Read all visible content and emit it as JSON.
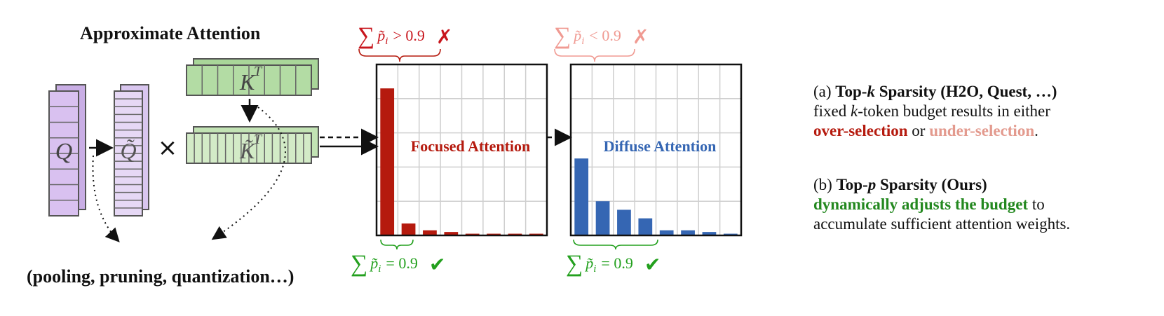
{
  "title": "Approximate Attention",
  "bottom_label": "(pooling, pruning, quantization…)",
  "matrices": {
    "q": "Q",
    "q_tilde": "Q̃",
    "times": "×",
    "k_t": "K",
    "k_t_sup": "T",
    "k_tilde": "K̃",
    "k_tilde_sup": "T"
  },
  "charts": [
    {
      "label": "Focused Attention",
      "label_color": "#b51a0e",
      "bar_color": "#b51a0e",
      "values": [
        0.86,
        0.07,
        0.03,
        0.02,
        0.01,
        0.01,
        0.01,
        0.01
      ],
      "top_formula": {
        "prefix": "∑",
        "var": "p̃",
        "sub": "i",
        "rel": "> 0.9",
        "mark": "✗",
        "color": "#c8161d"
      },
      "bottom_formula": {
        "prefix": "∑",
        "var": "p̃",
        "sub": "i",
        "rel": "= 0.9",
        "mark": "✔",
        "color": "#23a01e"
      }
    },
    {
      "label": "Diffuse Attention",
      "label_color": "#3566b3",
      "bar_color": "#3566b3",
      "values": [
        0.45,
        0.2,
        0.15,
        0.1,
        0.03,
        0.03,
        0.02,
        0.01
      ],
      "top_formula": {
        "prefix": "∑",
        "var": "p̃",
        "sub": "i",
        "rel": "< 0.9",
        "mark": "✗",
        "color": "#f09a92"
      },
      "bottom_formula": {
        "prefix": "∑",
        "var": "p̃",
        "sub": "i",
        "rel": "= 0.9",
        "mark": "✔",
        "color": "#23a01e"
      }
    }
  ],
  "caption_a": {
    "prefix": "(a) ",
    "title_1": "Top-",
    "title_k": "k",
    "title_2": " Sparsity (H2O, Quest, …)",
    "line2_1": "fixed ",
    "line2_k": "k",
    "line2_2": "-token budget results in either",
    "over": "over-selection",
    "or": " or ",
    "under": "under-selection",
    "end": "."
  },
  "caption_b": {
    "prefix": "(b) ",
    "title_1": "Top-",
    "title_p": "p",
    "title_2": " Sparsity (Ours)",
    "highlight": "dynamically adjusts the budget",
    "rest_1": " to",
    "rest_2": "accumulate sufficient attention weights."
  }
}
